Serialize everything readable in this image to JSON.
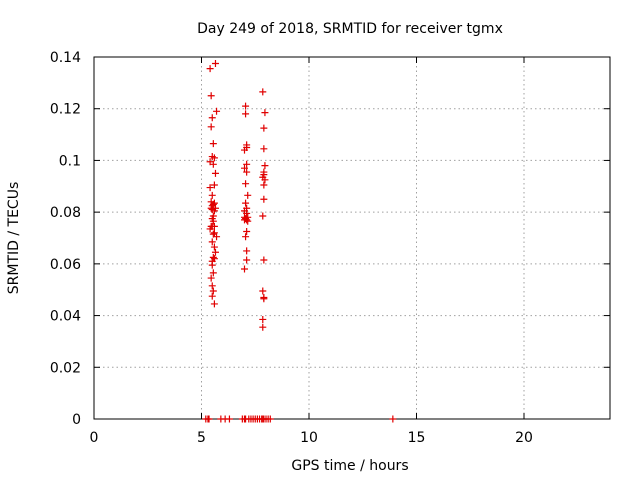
{
  "chart_data": {
    "type": "scatter",
    "title": "Day 249 of 2018, SRMTID for receiver tgmx",
    "xlabel": "GPS time / hours",
    "ylabel": "SRMTID / TECUs",
    "xlim": [
      0,
      24
    ],
    "ylim": [
      0,
      0.14
    ],
    "xticks": [
      0,
      5,
      10,
      15,
      20
    ],
    "yticks": [
      0,
      0.02,
      0.04,
      0.06,
      0.08,
      0.1,
      0.12,
      0.14
    ],
    "xtick_labels": [
      "0",
      "5",
      "10",
      "15",
      "20"
    ],
    "ytick_labels": [
      "0",
      "0.02",
      "0.04",
      "0.06",
      "0.08",
      "0.1",
      "0.12",
      "0.14"
    ],
    "grid": true,
    "marker": "+",
    "color": "#e00000",
    "series": [
      {
        "x": [
          5.65,
          5.4,
          5.7,
          5.45,
          5.5,
          5.45,
          5.55,
          5.5,
          5.6,
          5.4,
          5.55,
          5.65,
          5.6,
          5.4,
          5.5,
          5.45,
          5.6,
          5.5,
          5.55,
          5.65,
          5.45,
          5.5,
          5.6,
          5.55,
          5.5,
          5.55,
          5.6,
          5.45,
          5.5,
          5.4,
          5.6,
          5.55,
          5.7,
          5.5,
          5.6,
          5.65,
          5.55,
          5.5,
          5.6,
          5.5,
          5.55,
          5.45,
          5.5,
          5.55,
          5.5,
          5.6,
          7.05,
          7.05,
          7.1,
          7.1,
          7.0,
          7.1,
          7.0,
          7.1,
          7.05,
          7.15,
          7.05,
          7.1,
          7.0,
          7.1,
          7.0,
          7.15,
          7.05,
          7.1,
          7.0,
          7.15,
          7.1,
          7.05,
          7.1,
          7.1,
          7.0,
          7.85,
          7.95,
          7.9,
          7.9,
          7.95,
          7.9,
          7.9,
          7.85,
          7.95,
          7.9,
          7.9,
          7.85,
          7.9,
          7.85,
          7.9,
          7.9,
          7.85,
          7.85,
          7.9,
          7.85,
          7.9,
          5.2,
          5.3,
          5.35,
          5.9,
          6.1,
          6.3,
          6.9,
          7.0,
          7.05,
          7.2,
          7.3,
          7.4,
          7.5,
          7.6,
          7.7,
          7.8,
          7.9,
          8.0,
          8.1,
          8.2,
          13.9
        ],
        "y": [
          0.1375,
          0.1355,
          0.119,
          0.125,
          0.1165,
          0.113,
          0.1065,
          0.1015,
          0.101,
          0.0995,
          0.0985,
          0.095,
          0.0905,
          0.0895,
          0.0865,
          0.084,
          0.0835,
          0.0825,
          0.083,
          0.0815,
          0.0815,
          0.081,
          0.0805,
          0.0785,
          0.0775,
          0.0765,
          0.0745,
          0.0745,
          0.0745,
          0.0735,
          0.072,
          0.0715,
          0.0705,
          0.0685,
          0.0665,
          0.0645,
          0.0625,
          0.061,
          0.062,
          0.0595,
          0.0565,
          0.0545,
          0.0515,
          0.0495,
          0.0475,
          0.0445,
          0.121,
          0.118,
          0.106,
          0.105,
          0.104,
          0.0985,
          0.097,
          0.0955,
          0.091,
          0.0865,
          0.0835,
          0.0815,
          0.0805,
          0.0795,
          0.078,
          0.078,
          0.0775,
          0.077,
          0.077,
          0.0765,
          0.0725,
          0.0705,
          0.065,
          0.0615,
          0.058,
          0.1265,
          0.1185,
          0.1125,
          0.1045,
          0.098,
          0.0955,
          0.0945,
          0.0935,
          0.0925,
          0.0905,
          0.085,
          0.0785,
          0.0615,
          0.0495,
          0.047,
          0.0465,
          0.0385,
          0.0355,
          0.0,
          0.0,
          0.0,
          0.0,
          0.0,
          0.0,
          0.0,
          0.0,
          0.0,
          0.0,
          0.0,
          0.0,
          0.0,
          0.0,
          0.0,
          0.0,
          0.0,
          0.0,
          0.0,
          0.0,
          0.0,
          0.0,
          0.0,
          0.0
        ]
      }
    ]
  }
}
